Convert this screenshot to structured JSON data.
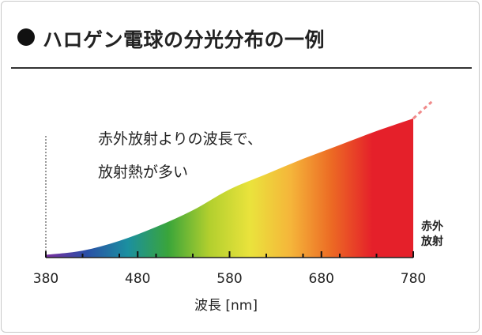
{
  "header": {
    "title": "ハロゲン電球の分光分布の一例"
  },
  "annotation": {
    "line1": "赤外放射よりの波長で、",
    "line2": "放射熱が多い"
  },
  "infrared_label": {
    "line1": "赤外",
    "line2": "放射"
  },
  "chart_data": {
    "type": "area",
    "title": "ハロゲン電球の分光分布の一例",
    "xlabel": "波長 [nm]",
    "ylabel": "",
    "xlim": [
      380,
      780
    ],
    "ylim": [
      0,
      1
    ],
    "x_ticks": [
      380,
      480,
      580,
      680,
      780
    ],
    "x_minor_ticks": [
      420,
      460,
      500,
      540,
      620,
      660,
      700,
      740
    ],
    "x": [
      380,
      420,
      460,
      500,
      540,
      580,
      620,
      660,
      700,
      740,
      780
    ],
    "values": [
      0.02,
      0.05,
      0.12,
      0.22,
      0.34,
      0.49,
      0.6,
      0.71,
      0.81,
      0.91,
      1.0
    ],
    "extension": {
      "x": [
        780,
        800
      ],
      "values": [
        1.0,
        1.12
      ],
      "style": "dashed"
    },
    "grid": false,
    "legend": "none",
    "colors": [
      "#7b2fa0",
      "#2a4fa6",
      "#1b8fa0",
      "#3aa53a",
      "#b2cf2e",
      "#eae33c",
      "#f5b53a",
      "#ec6a24",
      "#e5202a",
      "#e5202a"
    ]
  }
}
